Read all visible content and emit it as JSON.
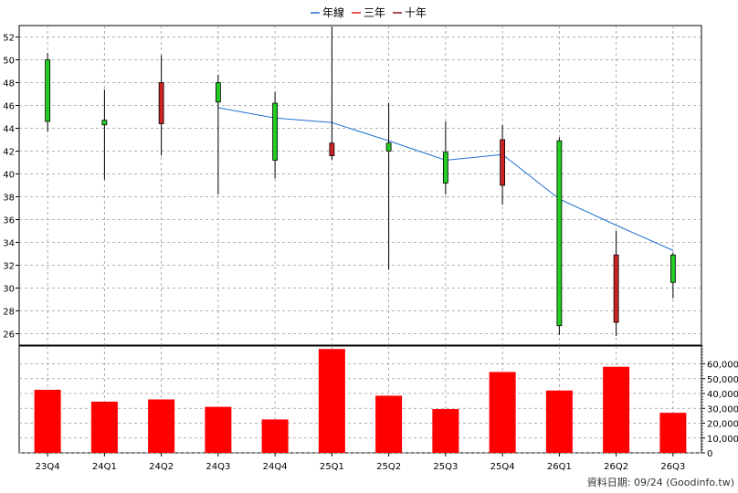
{
  "legend": [
    {
      "label": "年線",
      "color": "#1f6fd1"
    },
    {
      "label": "三年",
      "color": "#e02020"
    },
    {
      "label": "十年",
      "color": "#8b1a1a"
    }
  ],
  "footer": "資料日期: 09/24  (Goodinfo.tw)",
  "colors": {
    "up": "#22cc22",
    "down": "#cc2222",
    "volume": "#ff0000",
    "line": "#1f6fd1",
    "grid": "#999999"
  },
  "chart_data": {
    "type": "candlestick",
    "categories": [
      "23Q4",
      "24Q1",
      "24Q2",
      "24Q3",
      "24Q4",
      "25Q1",
      "25Q2",
      "25Q3",
      "25Q4",
      "26Q1",
      "26Q2",
      "26Q3"
    ],
    "price_ylim": [
      25,
      53
    ],
    "price_ticks": [
      26,
      28,
      30,
      32,
      34,
      36,
      38,
      40,
      42,
      44,
      46,
      48,
      50,
      52
    ],
    "candles": [
      {
        "open": 44.6,
        "close": 50.0,
        "high": 50.6,
        "low": 43.7,
        "color": "green"
      },
      {
        "open": 44.3,
        "close": 44.7,
        "high": 47.4,
        "low": 39.5,
        "color": "green"
      },
      {
        "open": 48.0,
        "close": 44.4,
        "high": 50.4,
        "low": 41.6,
        "color": "red"
      },
      {
        "open": 46.3,
        "close": 48.0,
        "high": 48.7,
        "low": 38.2,
        "color": "green"
      },
      {
        "open": 41.2,
        "close": 46.2,
        "high": 47.2,
        "low": 39.6,
        "color": "green"
      },
      {
        "open": 42.7,
        "close": 41.6,
        "high": 52.9,
        "low": 41.2,
        "color": "red"
      },
      {
        "open": 42.0,
        "close": 42.7,
        "high": 46.2,
        "low": 31.6,
        "color": "green"
      },
      {
        "open": 39.2,
        "close": 41.9,
        "high": 44.6,
        "low": 38.2,
        "color": "green"
      },
      {
        "open": 43.0,
        "close": 39.0,
        "high": 44.3,
        "low": 37.3,
        "color": "red"
      },
      {
        "open": 26.7,
        "close": 42.9,
        "high": 43.2,
        "low": 25.9,
        "color": "green"
      },
      {
        "open": 32.9,
        "close": 27.0,
        "high": 35.0,
        "low": 25.8,
        "color": "red"
      },
      {
        "open": 30.5,
        "close": 32.9,
        "high": 33.1,
        "low": 29.1,
        "color": "green"
      }
    ],
    "annual_line": [
      {
        "category": "24Q3",
        "value": 45.8
      },
      {
        "category": "24Q4",
        "value": 44.9
      },
      {
        "category": "25Q1",
        "value": 44.5
      },
      {
        "category": "25Q2",
        "value": 42.9
      },
      {
        "category": "25Q3",
        "value": 41.2
      },
      {
        "category": "25Q4",
        "value": 41.7
      },
      {
        "category": "26Q1",
        "value": 37.8
      },
      {
        "category": "26Q2",
        "value": 35.5
      },
      {
        "category": "26Q3",
        "value": 33.3
      }
    ],
    "volume_ylim": [
      0,
      72000
    ],
    "volume_ticks": [
      0,
      10000,
      20000,
      30000,
      40000,
      50000,
      60000
    ],
    "volume_tick_labels": [
      "0",
      "10,000",
      "20,000",
      "30,000",
      "40,000",
      "50,000",
      "60,000"
    ],
    "volume": [
      42500,
      34500,
      36000,
      31000,
      22500,
      70000,
      38500,
      29500,
      54500,
      42000,
      58000,
      27000
    ]
  }
}
